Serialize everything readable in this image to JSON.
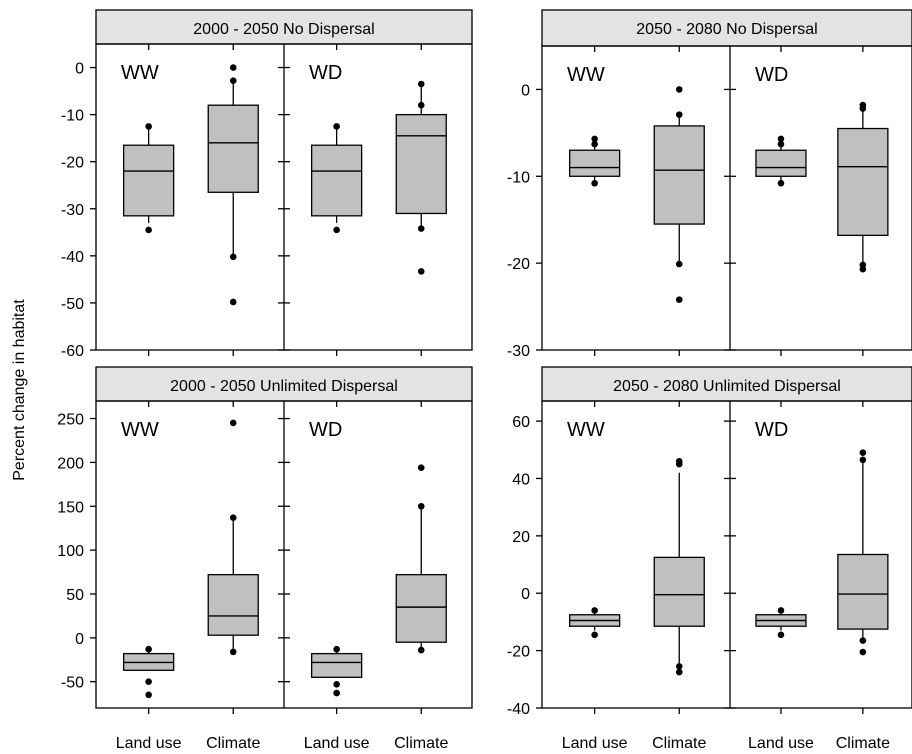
{
  "ylabel": "Percent change in habitat",
  "chart_data": [
    {
      "type": "box",
      "title": "2000 - 2050 No Dispersal",
      "ylim": [
        -60,
        5
      ],
      "yticks": [
        0,
        -10,
        -20,
        -30,
        -40,
        -50,
        -60
      ],
      "grid": false,
      "categories": [
        "Land use",
        "Climate"
      ],
      "panels": [
        {
          "label": "WW",
          "boxes": [
            {
              "category": "Land use",
              "whisker_low": -33,
              "q1": -31.5,
              "median": -22,
              "q3": -16.5,
              "whisker_high": -13,
              "outliers": [
                -34.5,
                -12.5
              ]
            },
            {
              "category": "Climate",
              "whisker_low": -40,
              "q1": -26.5,
              "median": -16,
              "q3": -8,
              "whisker_high": -2.5,
              "outliers": [
                -49.8,
                -40.2,
                -2.8,
                0
              ]
            }
          ]
        },
        {
          "label": "WD",
          "boxes": [
            {
              "category": "Land use",
              "whisker_low": -33,
              "q1": -31.5,
              "median": -22,
              "q3": -16.5,
              "whisker_high": -13,
              "outliers": [
                -34.5,
                -12.5
              ]
            },
            {
              "category": "Climate",
              "whisker_low": -34,
              "q1": -31,
              "median": -14.5,
              "q3": -10,
              "whisker_high": -3.5,
              "outliers": [
                -43.3,
                -34.2,
                -8,
                -3.5
              ]
            }
          ]
        }
      ]
    },
    {
      "type": "box",
      "title": "2050 - 2080 No Dispersal",
      "ylim": [
        -30,
        5
      ],
      "yticks": [
        0,
        -10,
        -20,
        -30
      ],
      "grid": false,
      "categories": [
        "Land use",
        "Climate"
      ],
      "panels": [
        {
          "label": "WW",
          "boxes": [
            {
              "category": "Land use",
              "whisker_low": -10.5,
              "q1": -10,
              "median": -9,
              "q3": -7,
              "whisker_high": -6,
              "outliers": [
                -10.8,
                -6.3,
                -5.7
              ]
            },
            {
              "category": "Climate",
              "whisker_low": -20,
              "q1": -15.5,
              "median": -9.3,
              "q3": -4.2,
              "whisker_high": -2.8,
              "outliers": [
                -24.2,
                -20.1,
                -2.9,
                0
              ]
            }
          ]
        },
        {
          "label": "WD",
          "boxes": [
            {
              "category": "Land use",
              "whisker_low": -10.5,
              "q1": -10,
              "median": -9,
              "q3": -7,
              "whisker_high": -6,
              "outliers": [
                -10.8,
                -6.3,
                -5.7
              ]
            },
            {
              "category": "Climate",
              "whisker_low": -20,
              "q1": -16.8,
              "median": -8.9,
              "q3": -4.5,
              "whisker_high": -2,
              "outliers": [
                -20.7,
                -20.2,
                -2.2,
                -1.8
              ]
            }
          ]
        }
      ]
    },
    {
      "type": "box",
      "title": "2000 - 2050 Unlimited Dispersal",
      "ylim": [
        -80,
        270
      ],
      "yticks": [
        250,
        200,
        150,
        100,
        50,
        0,
        -50
      ],
      "grid": false,
      "categories": [
        "Land use",
        "Climate"
      ],
      "panels": [
        {
          "label": "WW",
          "boxes": [
            {
              "category": "Land use",
              "whisker_low": -37,
              "q1": -37,
              "median": -28,
              "q3": -18,
              "whisker_high": -13,
              "outliers": [
                -65,
                -50,
                -13
              ]
            },
            {
              "category": "Climate",
              "whisker_low": -14,
              "q1": 3,
              "median": 25,
              "q3": 72,
              "whisker_high": 137,
              "outliers": [
                -16,
                137,
                245
              ]
            }
          ]
        },
        {
          "label": "WD",
          "boxes": [
            {
              "category": "Land use",
              "whisker_low": -45,
              "q1": -45,
              "median": -28,
              "q3": -18,
              "whisker_high": -13,
              "outliers": [
                -63,
                -53,
                -13
              ]
            },
            {
              "category": "Climate",
              "whisker_low": -11,
              "q1": -5,
              "median": 35,
              "q3": 72,
              "whisker_high": 150,
              "outliers": [
                -14,
                150,
                194
              ]
            }
          ]
        }
      ]
    },
    {
      "type": "box",
      "title": "2050 - 2080 Unlimited Dispersal",
      "ylim": [
        -40,
        67
      ],
      "yticks": [
        60,
        40,
        20,
        0,
        -20,
        -40
      ],
      "grid": false,
      "categories": [
        "Land use",
        "Climate"
      ],
      "panels": [
        {
          "label": "WW",
          "boxes": [
            {
              "category": "Land use",
              "whisker_low": -13,
              "q1": -11.5,
              "median": -9.5,
              "q3": -7.5,
              "whisker_high": -6,
              "outliers": [
                -14.5,
                -6
              ]
            },
            {
              "category": "Climate",
              "whisker_low": -25,
              "q1": -11.5,
              "median": -0.5,
              "q3": 12.5,
              "whisker_high": 42,
              "outliers": [
                -27.5,
                -25.5,
                45,
                46
              ]
            }
          ]
        },
        {
          "label": "WD",
          "boxes": [
            {
              "category": "Land use",
              "whisker_low": -13,
              "q1": -11.5,
              "median": -9.5,
              "q3": -7.5,
              "whisker_high": -6,
              "outliers": [
                -14.5,
                -6
              ]
            },
            {
              "category": "Climate",
              "whisker_low": -17,
              "q1": -12.5,
              "median": -0.3,
              "q3": 13.5,
              "whisker_high": 46,
              "outliers": [
                -20.5,
                -16.5,
                46.5,
                49
              ]
            }
          ]
        }
      ]
    }
  ]
}
